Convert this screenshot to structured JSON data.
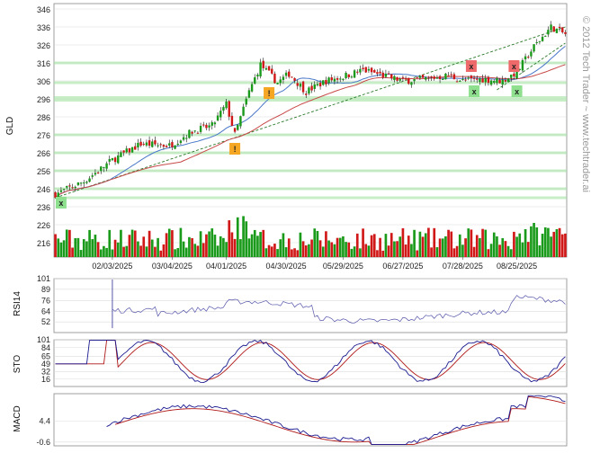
{
  "watermark": "© 2012 Tech Trader ~ www.techtrader.ai",
  "colors": {
    "up": "#1a9a1a",
    "down": "#d01818",
    "grid": "#dcdcdc",
    "hband": "#9be09b",
    "ma_fast": "#4a78c8",
    "ma_slow": "#c84a4a",
    "trend": "#2a7a2a",
    "rsi": "#5555aa",
    "sto_k": "#1a1a90",
    "sto_d": "#b01818",
    "macd": "#1a1a90",
    "signal": "#b01818",
    "box_green": "#8ee08e",
    "box_red": "#ee6a6a",
    "box_orange": "#f5a623"
  },
  "chart_data": {
    "type": "candlestick",
    "symbol": "GLD",
    "price_panel": {
      "ylabel": "GLD",
      "yticks": [
        216,
        226,
        236,
        246,
        256,
        266,
        276,
        286,
        296,
        306,
        316,
        326,
        336,
        346
      ],
      "ylim": [
        208,
        349
      ],
      "start_date": "2025-01-02",
      "x_tick_labels": [
        "02/03/2025",
        "03/04/2025",
        "04/01/2025",
        "04/30/2025",
        "05/29/2025",
        "06/27/2025",
        "07/28/2025",
        "08/25/2025"
      ],
      "x_tick_index": [
        20,
        41,
        60,
        81,
        101,
        122,
        143,
        162
      ],
      "n_bars": 180,
      "close_anchors": [
        [
          0,
          243
        ],
        [
          10,
          250
        ],
        [
          20,
          262
        ],
        [
          30,
          271
        ],
        [
          40,
          270
        ],
        [
          48,
          278
        ],
        [
          55,
          281
        ],
        [
          60,
          293
        ],
        [
          63,
          276
        ],
        [
          68,
          300
        ],
        [
          72,
          315
        ],
        [
          78,
          305
        ],
        [
          82,
          310
        ],
        [
          88,
          300
        ],
        [
          95,
          306
        ],
        [
          100,
          308
        ],
        [
          108,
          312
        ],
        [
          115,
          309
        ],
        [
          122,
          306
        ],
        [
          130,
          307
        ],
        [
          138,
          309
        ],
        [
          143,
          306
        ],
        [
          150,
          307
        ],
        [
          157,
          306
        ],
        [
          162,
          311
        ],
        [
          168,
          325
        ],
        [
          174,
          336
        ],
        [
          179,
          332
        ]
      ],
      "support_levels": [
        316,
        305,
        296,
        276,
        266,
        256,
        246,
        241
      ],
      "markers": [
        {
          "label": "x",
          "index": 2,
          "price": 238,
          "kind": "buy"
        },
        {
          "label": "!",
          "index": 63,
          "price": 268,
          "kind": "alert"
        },
        {
          "label": "!",
          "index": 75,
          "price": 299,
          "kind": "alert"
        },
        {
          "label": "x",
          "index": 146,
          "price": 314,
          "kind": "sell"
        },
        {
          "label": "x",
          "index": 147,
          "price": 300,
          "kind": "buy"
        },
        {
          "label": "x",
          "index": 161,
          "price": 314,
          "kind": "sell"
        },
        {
          "label": "x",
          "index": 162,
          "price": 300,
          "kind": "buy"
        }
      ]
    },
    "rsi_panel": {
      "ylabel": "RSI14",
      "yticks": [
        52,
        64,
        76,
        89,
        101
      ],
      "ylim": [
        40,
        101
      ]
    },
    "sto_panel": {
      "ylabel": "STO",
      "yticks": [
        16,
        32,
        49,
        65,
        84,
        101
      ],
      "ylim": [
        0,
        101
      ]
    },
    "macd_panel": {
      "ylabel": "MACD",
      "yticks": [
        -0.6,
        4.4
      ],
      "ylim": [
        -1.5,
        11
      ]
    }
  }
}
